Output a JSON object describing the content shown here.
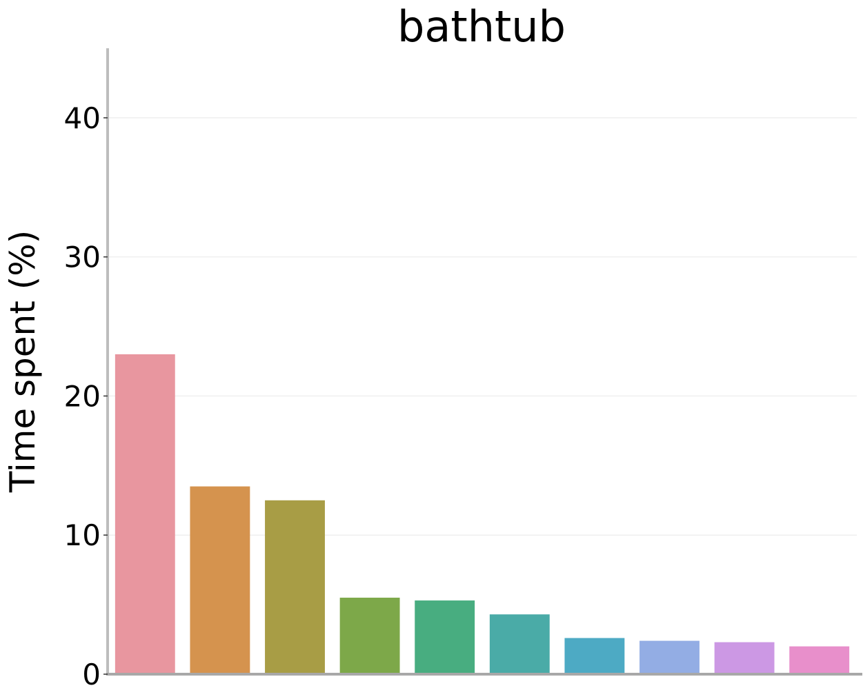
{
  "chart_data": {
    "type": "bar",
    "title": "bathtub",
    "xlabel": "",
    "ylabel": "Time spent (%)",
    "categories": [
      "",
      "",
      "",
      "",
      "",
      "",
      "",
      "",
      "",
      ""
    ],
    "values": [
      23.0,
      13.5,
      12.5,
      5.5,
      5.3,
      4.3,
      2.6,
      2.4,
      2.3,
      2.0
    ],
    "colors": [
      "#e8969f",
      "#d5934e",
      "#a89d45",
      "#7da849",
      "#48ad80",
      "#4aaba7",
      "#4daac4",
      "#93ade4",
      "#cc98e4",
      "#e88fcb"
    ],
    "ylim": [
      0,
      45
    ],
    "yticks": [
      0,
      10,
      20,
      30,
      40
    ],
    "ytick_labels": [
      "0",
      "10",
      "20",
      "30",
      "40"
    ],
    "grid": "y-horizontal",
    "legend": "none",
    "spine_color": "#bdbdbd",
    "grid_color": "#ebebeb"
  }
}
